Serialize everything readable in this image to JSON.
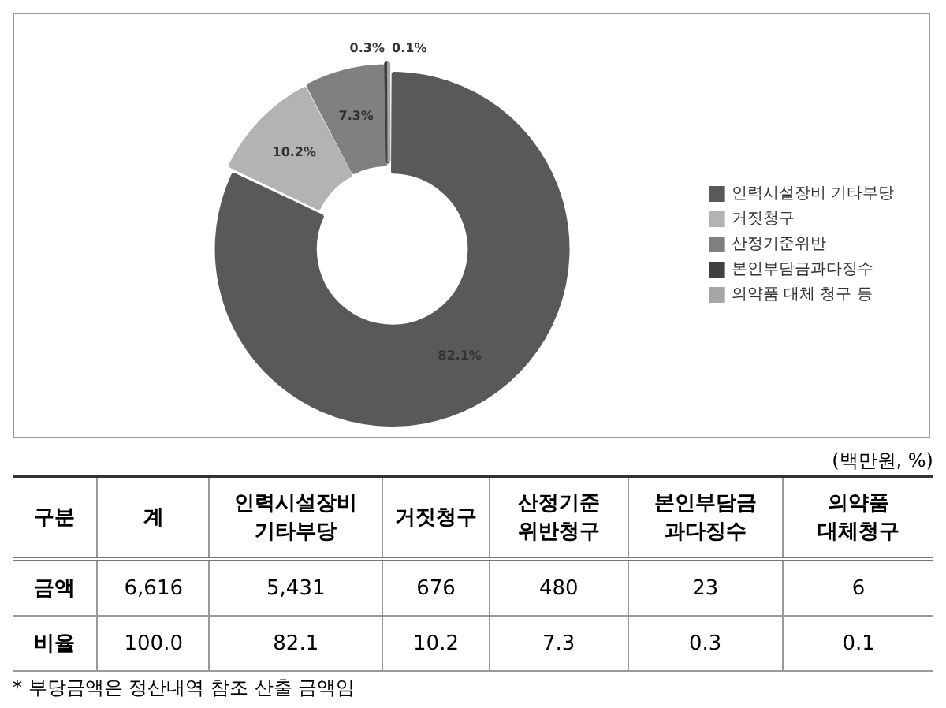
{
  "chart_data": [
    {
      "type": "donut",
      "categories": [
        "인력시설장비 기타부당",
        "거짓청구",
        "산정기준위반",
        "본인부담금과다징수",
        "의약품 대체 청구 등"
      ],
      "values": [
        82.1,
        10.2,
        7.3,
        0.3,
        0.1
      ],
      "colors": [
        "#595959",
        "#b3b3b3",
        "#808080",
        "#404040",
        "#a6a6a6"
      ],
      "value_labels": [
        "82.1%",
        "10.2%",
        "7.3%",
        "0.3%",
        "0.1%"
      ],
      "legend": "right"
    },
    {
      "type": "other",
      "legend_title": "구분",
      "categories": [
        "계",
        "인력시설장비 기타부당",
        "거짓청구",
        "산정기준 위반청구",
        "본인부담금 과다징수",
        "의약품 대체청구"
      ],
      "series": [
        {
          "name": "금액",
          "values": [
            6616,
            5431,
            676,
            480,
            23,
            6
          ],
          "value_labels": [
            "6,616",
            "5,431",
            "676",
            "480",
            "23",
            "6"
          ]
        },
        {
          "name": "비율",
          "values": [
            100.0,
            82.1,
            10.2,
            7.3,
            0.3,
            0.1
          ],
          "value_labels": [
            "100.0",
            "82.1",
            "10.2",
            "7.3",
            "0.3",
            "0.1"
          ]
        }
      ],
      "data_labels": true,
      "annotations": [
        "(백만원, %)",
        "* 부당금액은 정산내역 참조 산출 금액임"
      ]
    }
  ]
}
